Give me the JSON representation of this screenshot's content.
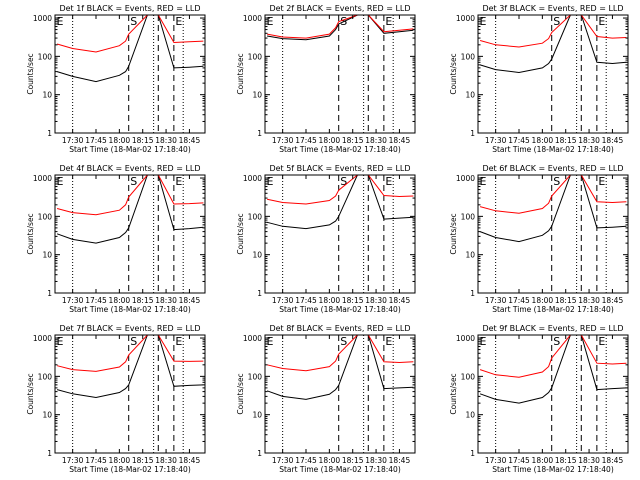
{
  "figure": {
    "shared": {
      "x_tick_labels": [
        "17:30",
        "17:45",
        "18:00",
        "18:15",
        "18:30",
        "18:45"
      ],
      "x_label": "Start Time (18-Mar-02 17:18:40)",
      "y_label": "Counts/sec",
      "y_tick_labels": [
        "1",
        "10",
        "100",
        "1000"
      ],
      "marker_labels": [
        "E",
        "S",
        "E"
      ],
      "colors": {
        "events": "#000000",
        "lld": "#ff0000",
        "axes": "#000000",
        "background": "#ffffff"
      }
    }
  },
  "chart_data": [
    {
      "type": "line",
      "title": "Det 1f BLACK = Events, RED = LLD",
      "xlabel": "Start Time (18-Mar-02 17:18:40)",
      "ylabel": "Counts/sec",
      "yscale": "log",
      "ylim": [
        1,
        1200
      ],
      "xlim": [
        "17:18:40",
        "18:55"
      ],
      "x_ticks": [
        "17:30",
        "17:45",
        "18:00",
        "18:15",
        "18:30",
        "18:45"
      ],
      "y_ticks": [
        1,
        10,
        100,
        1000
      ],
      "marker_lines": {
        "dotted": [
          "17:30",
          "18:22",
          "18:41"
        ],
        "dashed": [
          "18:06",
          "18:25",
          "18:35"
        ]
      },
      "marker_labels": [
        "E",
        "S",
        "E"
      ],
      "grid": false,
      "legend": "none",
      "series": [
        {
          "color": "#000000",
          "x": [
            "17:20",
            "17:30",
            "17:45",
            "18:00",
            "18:04",
            "18:06",
            "18:18",
            "18:25",
            "18:35",
            "18:45",
            "18:54"
          ],
          "y": [
            40,
            30,
            22,
            32,
            40,
            55,
            1200,
            1200,
            50,
            52,
            55
          ]
        },
        {
          "color": "#ff0000",
          "x": [
            "17:20",
            "17:30",
            "17:45",
            "18:00",
            "18:04",
            "18:06",
            "18:18",
            "18:25",
            "18:35",
            "18:45",
            "18:54"
          ],
          "y": [
            210,
            160,
            130,
            190,
            250,
            380,
            1200,
            1200,
            230,
            240,
            250
          ]
        }
      ]
    },
    {
      "type": "line",
      "title": "Det 2f BLACK = Events, RED = LLD",
      "xlabel": "Start Time (18-Mar-02 17:18:40)",
      "ylabel": "Counts/sec",
      "yscale": "log",
      "ylim": [
        1,
        1200
      ],
      "xlim": [
        "17:18:40",
        "18:55"
      ],
      "x_ticks": [
        "17:30",
        "17:45",
        "18:00",
        "18:15",
        "18:30",
        "18:45"
      ],
      "y_ticks": [
        1,
        10,
        100,
        1000
      ],
      "marker_lines": {
        "dotted": [
          "17:30",
          "18:22",
          "18:41"
        ],
        "dashed": [
          "18:06",
          "18:25",
          "18:35"
        ]
      },
      "marker_labels": [
        "E",
        "S",
        "E"
      ],
      "grid": false,
      "legend": "none",
      "series": [
        {
          "color": "#000000",
          "x": [
            "17:20",
            "17:30",
            "17:45",
            "18:00",
            "18:04",
            "18:06",
            "18:18",
            "18:25",
            "18:35",
            "18:45",
            "18:54"
          ],
          "y": [
            340,
            290,
            270,
            340,
            500,
            700,
            1200,
            1200,
            400,
            440,
            480
          ]
        },
        {
          "color": "#ff0000",
          "x": [
            "17:20",
            "17:30",
            "17:45",
            "18:00",
            "18:04",
            "18:06",
            "18:18",
            "18:25",
            "18:35",
            "18:45",
            "18:54"
          ],
          "y": [
            380,
            320,
            300,
            380,
            560,
            800,
            1200,
            1200,
            440,
            480,
            520
          ]
        }
      ]
    },
    {
      "type": "line",
      "title": "Det 3f BLACK = Events, RED = LLD",
      "xlabel": "Start Time (18-Mar-02 17:18:40)",
      "ylabel": "Counts/sec",
      "yscale": "log",
      "ylim": [
        1,
        1200
      ],
      "xlim": [
        "17:18:40",
        "18:55"
      ],
      "x_ticks": [
        "17:30",
        "17:45",
        "18:00",
        "18:15",
        "18:30",
        "18:45"
      ],
      "y_ticks": [
        1,
        10,
        100,
        1000
      ],
      "marker_lines": {
        "dotted": [
          "17:30",
          "18:22",
          "18:41"
        ],
        "dashed": [
          "18:06",
          "18:25",
          "18:35"
        ]
      },
      "marker_labels": [
        "E",
        "S",
        "E"
      ],
      "grid": false,
      "legend": "none",
      "series": [
        {
          "color": "#000000",
          "x": [
            "17:20",
            "17:30",
            "17:45",
            "18:00",
            "18:04",
            "18:06",
            "18:18",
            "18:25",
            "18:35",
            "18:45",
            "18:54"
          ],
          "y": [
            60,
            45,
            38,
            50,
            65,
            85,
            1200,
            1200,
            70,
            65,
            70
          ]
        },
        {
          "color": "#ff0000",
          "x": [
            "17:20",
            "17:30",
            "17:45",
            "18:00",
            "18:04",
            "18:06",
            "18:18",
            "18:25",
            "18:35",
            "18:45",
            "18:54"
          ],
          "y": [
            260,
            200,
            175,
            220,
            290,
            420,
            1200,
            1200,
            330,
            300,
            310
          ]
        }
      ]
    },
    {
      "type": "line",
      "title": "Det 4f BLACK = Events, RED = LLD",
      "xlabel": "Start Time (18-Mar-02 17:18:40)",
      "ylabel": "Counts/sec",
      "yscale": "log",
      "ylim": [
        1,
        1200
      ],
      "xlim": [
        "17:18:40",
        "18:55"
      ],
      "x_ticks": [
        "17:30",
        "17:45",
        "18:00",
        "18:15",
        "18:30",
        "18:45"
      ],
      "y_ticks": [
        1,
        10,
        100,
        1000
      ],
      "marker_lines": {
        "dotted": [
          "17:30",
          "18:22",
          "18:41"
        ],
        "dashed": [
          "18:06",
          "18:25",
          "18:35"
        ]
      },
      "marker_labels": [
        "E",
        "S",
        "E"
      ],
      "grid": false,
      "legend": "none",
      "series": [
        {
          "color": "#000000",
          "x": [
            "17:20",
            "17:30",
            "17:45",
            "18:00",
            "18:04",
            "18:06",
            "18:18",
            "18:25",
            "18:35",
            "18:45",
            "18:54"
          ],
          "y": [
            35,
            25,
            20,
            28,
            38,
            50,
            1200,
            1200,
            45,
            48,
            52
          ]
        },
        {
          "color": "#ff0000",
          "x": [
            "17:20",
            "17:30",
            "17:45",
            "18:00",
            "18:04",
            "18:06",
            "18:18",
            "18:25",
            "18:35",
            "18:45",
            "18:54"
          ],
          "y": [
            160,
            125,
            110,
            145,
            200,
            320,
            1200,
            1200,
            210,
            215,
            225
          ]
        }
      ]
    },
    {
      "type": "line",
      "title": "Det 5f BLACK = Events, RED = LLD",
      "xlabel": "Start Time (18-Mar-02 17:18:40)",
      "ylabel": "Counts/sec",
      "yscale": "log",
      "ylim": [
        1,
        1200
      ],
      "xlim": [
        "17:18:40",
        "18:55"
      ],
      "x_ticks": [
        "17:30",
        "17:45",
        "18:00",
        "18:15",
        "18:30",
        "18:45"
      ],
      "y_ticks": [
        1,
        10,
        100,
        1000
      ],
      "marker_lines": {
        "dotted": [
          "17:30",
          "18:22",
          "18:41"
        ],
        "dashed": [
          "18:06",
          "18:25",
          "18:35"
        ]
      },
      "marker_labels": [
        "E",
        "S",
        "E"
      ],
      "grid": false,
      "legend": "none",
      "series": [
        {
          "color": "#000000",
          "x": [
            "17:20",
            "17:30",
            "17:45",
            "18:00",
            "18:04",
            "18:06",
            "18:18",
            "18:25",
            "18:35",
            "18:45",
            "18:54"
          ],
          "y": [
            70,
            55,
            48,
            60,
            75,
            100,
            1200,
            1200,
            85,
            90,
            95
          ]
        },
        {
          "color": "#ff0000",
          "x": [
            "17:20",
            "17:30",
            "17:45",
            "18:00",
            "18:04",
            "18:06",
            "18:18",
            "18:25",
            "18:35",
            "18:45",
            "18:54"
          ],
          "y": [
            280,
            230,
            210,
            260,
            340,
            480,
            1200,
            1200,
            350,
            330,
            340
          ]
        }
      ]
    },
    {
      "type": "line",
      "title": "Det 6f BLACK = Events, RED = LLD",
      "xlabel": "Start Time (18-Mar-02 17:18:40)",
      "ylabel": "Counts/sec",
      "yscale": "log",
      "ylim": [
        1,
        1200
      ],
      "xlim": [
        "17:18:40",
        "18:55"
      ],
      "x_ticks": [
        "17:30",
        "17:45",
        "18:00",
        "18:15",
        "18:30",
        "18:45"
      ],
      "y_ticks": [
        1,
        10,
        100,
        1000
      ],
      "marker_lines": {
        "dotted": [
          "17:30",
          "18:22",
          "18:41"
        ],
        "dashed": [
          "18:06",
          "18:25",
          "18:35"
        ]
      },
      "marker_labels": [
        "E",
        "S",
        "E"
      ],
      "grid": false,
      "legend": "none",
      "series": [
        {
          "color": "#000000",
          "x": [
            "17:20",
            "17:30",
            "17:45",
            "18:00",
            "18:04",
            "18:06",
            "18:18",
            "18:25",
            "18:35",
            "18:45",
            "18:54"
          ],
          "y": [
            40,
            28,
            22,
            32,
            42,
            55,
            1200,
            1200,
            50,
            52,
            55
          ]
        },
        {
          "color": "#ff0000",
          "x": [
            "17:20",
            "17:30",
            "17:45",
            "18:00",
            "18:04",
            "18:06",
            "18:18",
            "18:25",
            "18:35",
            "18:45",
            "18:54"
          ],
          "y": [
            180,
            140,
            120,
            160,
            220,
            340,
            1200,
            1200,
            240,
            230,
            240
          ]
        }
      ]
    },
    {
      "type": "line",
      "title": "Det 7f BLACK = Events, RED = LLD",
      "xlabel": "Start Time (18-Mar-02 17:18:40)",
      "ylabel": "Counts/sec",
      "yscale": "log",
      "ylim": [
        1,
        1200
      ],
      "xlim": [
        "17:18:40",
        "18:55"
      ],
      "x_ticks": [
        "17:30",
        "17:45",
        "18:00",
        "18:15",
        "18:30",
        "18:45"
      ],
      "y_ticks": [
        1,
        10,
        100,
        1000
      ],
      "marker_lines": {
        "dotted": [
          "17:30",
          "18:22",
          "18:41"
        ],
        "dashed": [
          "18:06",
          "18:25",
          "18:35"
        ]
      },
      "marker_labels": [
        "E",
        "S",
        "E"
      ],
      "grid": false,
      "legend": "none",
      "series": [
        {
          "color": "#000000",
          "x": [
            "17:20",
            "17:30",
            "17:45",
            "18:00",
            "18:04",
            "18:06",
            "18:18",
            "18:25",
            "18:35",
            "18:45",
            "18:54"
          ],
          "y": [
            45,
            35,
            28,
            38,
            48,
            60,
            1200,
            1200,
            55,
            58,
            60
          ]
        },
        {
          "color": "#ff0000",
          "x": [
            "17:20",
            "17:30",
            "17:45",
            "18:00",
            "18:04",
            "18:06",
            "18:18",
            "18:25",
            "18:35",
            "18:45",
            "18:54"
          ],
          "y": [
            190,
            150,
            135,
            175,
            240,
            360,
            1200,
            1200,
            250,
            245,
            250
          ]
        }
      ]
    },
    {
      "type": "line",
      "title": "Det 8f BLACK = Events, RED = LLD",
      "xlabel": "Start Time (18-Mar-02 17:18:40)",
      "ylabel": "Counts/sec",
      "yscale": "log",
      "ylim": [
        1,
        1200
      ],
      "xlim": [
        "17:18:40",
        "18:55"
      ],
      "x_ticks": [
        "17:30",
        "17:45",
        "18:00",
        "18:15",
        "18:30",
        "18:45"
      ],
      "y_ticks": [
        1,
        10,
        100,
        1000
      ],
      "marker_lines": {
        "dotted": [
          "17:30",
          "18:22",
          "18:41"
        ],
        "dashed": [
          "18:06",
          "18:25",
          "18:35"
        ]
      },
      "marker_labels": [
        "E",
        "S",
        "E"
      ],
      "grid": false,
      "legend": "none",
      "series": [
        {
          "color": "#000000",
          "x": [
            "17:20",
            "17:30",
            "17:45",
            "18:00",
            "18:04",
            "18:06",
            "18:18",
            "18:25",
            "18:35",
            "18:45",
            "18:54"
          ],
          "y": [
            42,
            30,
            25,
            34,
            45,
            58,
            1200,
            1200,
            48,
            50,
            52
          ]
        },
        {
          "color": "#ff0000",
          "x": [
            "17:20",
            "17:30",
            "17:45",
            "18:00",
            "18:04",
            "18:06",
            "18:18",
            "18:25",
            "18:35",
            "18:45",
            "18:54"
          ],
          "y": [
            200,
            160,
            140,
            180,
            250,
            380,
            1200,
            1200,
            240,
            230,
            240
          ]
        }
      ]
    },
    {
      "type": "line",
      "title": "Det 9f BLACK = Events, RED = LLD",
      "xlabel": "Start Time (18-Mar-02 17:18:40)",
      "ylabel": "Counts/sec",
      "yscale": "log",
      "ylim": [
        1,
        1200
      ],
      "xlim": [
        "17:18:40",
        "18:55"
      ],
      "x_ticks": [
        "17:30",
        "17:45",
        "18:00",
        "18:15",
        "18:30",
        "18:45"
      ],
      "y_ticks": [
        1,
        10,
        100,
        1000
      ],
      "marker_lines": {
        "dotted": [
          "17:30",
          "18:22",
          "18:41"
        ],
        "dashed": [
          "18:06",
          "18:25",
          "18:35"
        ]
      },
      "marker_labels": [
        "E",
        "S",
        "E"
      ],
      "grid": false,
      "legend": "none",
      "series": [
        {
          "color": "#000000",
          "x": [
            "17:20",
            "17:30",
            "17:45",
            "18:00",
            "18:04",
            "18:06",
            "18:18",
            "18:25",
            "18:35",
            "18:45",
            "18:54"
          ],
          "y": [
            35,
            25,
            20,
            28,
            38,
            50,
            1200,
            1200,
            45,
            48,
            50
          ]
        },
        {
          "color": "#ff0000",
          "x": [
            "17:20",
            "17:30",
            "17:45",
            "18:00",
            "18:04",
            "18:06",
            "18:18",
            "18:25",
            "18:35",
            "18:45",
            "18:54"
          ],
          "y": [
            150,
            110,
            95,
            130,
            180,
            300,
            1200,
            1200,
            220,
            210,
            220
          ]
        }
      ]
    }
  ]
}
